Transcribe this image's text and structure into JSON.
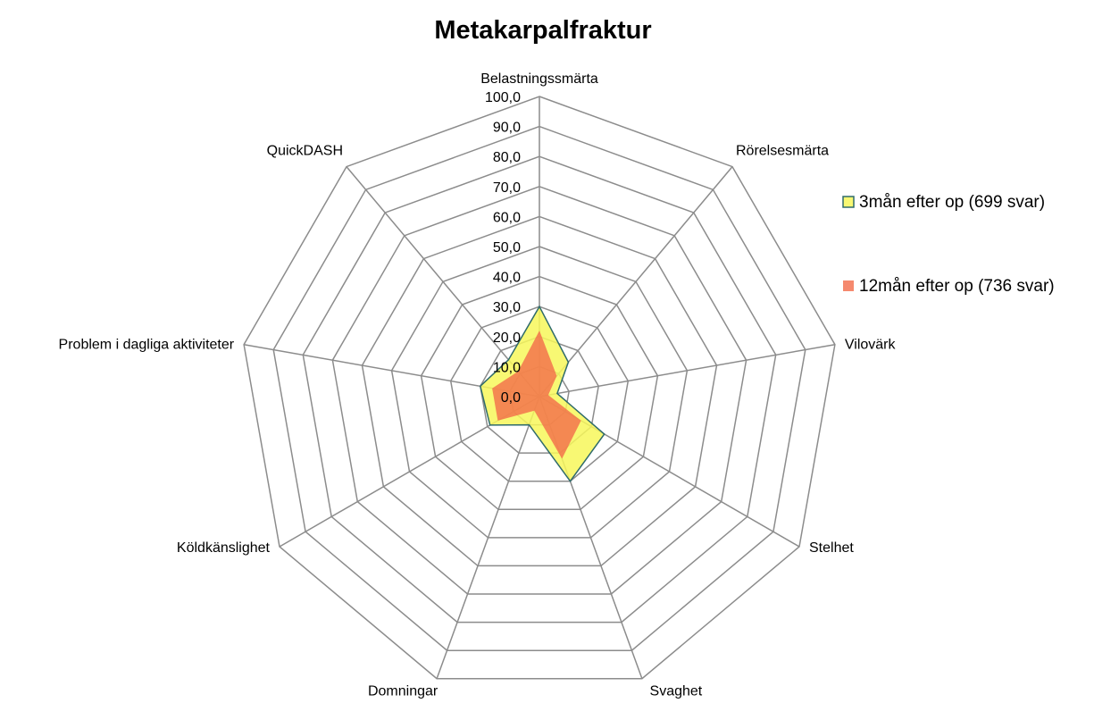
{
  "chart_data": {
    "type": "radar",
    "title": "Metakarpalfraktur",
    "categories": [
      "Belastningssmärta",
      "Rörelsesmärta",
      "Vilovärk",
      "Stelhet",
      "Svaghet",
      "Domningar",
      "Köldkänslighet",
      "Problem i dagliga aktiviteter",
      "QuickDASH"
    ],
    "rlim": [
      0,
      100
    ],
    "tick_step": 10,
    "tick_labels": [
      "0,0",
      "10,0",
      "20,0",
      "30,0",
      "40,0",
      "50,0",
      "60,0",
      "70,0",
      "80,0",
      "90,0",
      "100,0"
    ],
    "grid": true,
    "legend_position": "right",
    "series": [
      {
        "name": "3mån efter op (699 svar)",
        "values": [
          30,
          15,
          6,
          25,
          30,
          10,
          19,
          20,
          16
        ],
        "fill": "#f7f75a",
        "stroke": "#2f6b6b",
        "fill_opacity": 0.85
      },
      {
        "name": "12mån efter op (736 svar)",
        "values": [
          22,
          9,
          3,
          16,
          22,
          5,
          16,
          16,
          11
        ],
        "fill": "#f26b4a",
        "stroke": "none",
        "fill_opacity": 0.8
      }
    ]
  }
}
